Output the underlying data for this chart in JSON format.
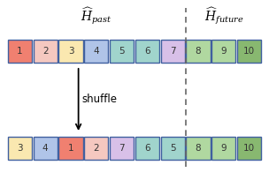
{
  "top_row": [
    1,
    2,
    3,
    4,
    5,
    6,
    7,
    8,
    9,
    10
  ],
  "bottom_row": [
    3,
    4,
    1,
    2,
    7,
    6,
    5,
    8,
    9,
    10
  ],
  "cell_colors_by_number": {
    "1": "#F08070",
    "2": "#F5C8C0",
    "3": "#FAE8B0",
    "4": "#B0C4E8",
    "5": "#A0D4CC",
    "6": "#A0D4CC",
    "7": "#D8C0E8",
    "8": "#B0D8A0",
    "9": "#B0D8A0",
    "10": "#88B870"
  },
  "border_color": "#4060A0",
  "title_past": "$\\widehat{H}_{past}$",
  "title_future": "$\\widehat{H}_{future}$",
  "arrow_label": "shuffle",
  "fig_bg": "#ffffff",
  "fig_width": 3.04,
  "fig_height": 2.04,
  "dpi": 100
}
